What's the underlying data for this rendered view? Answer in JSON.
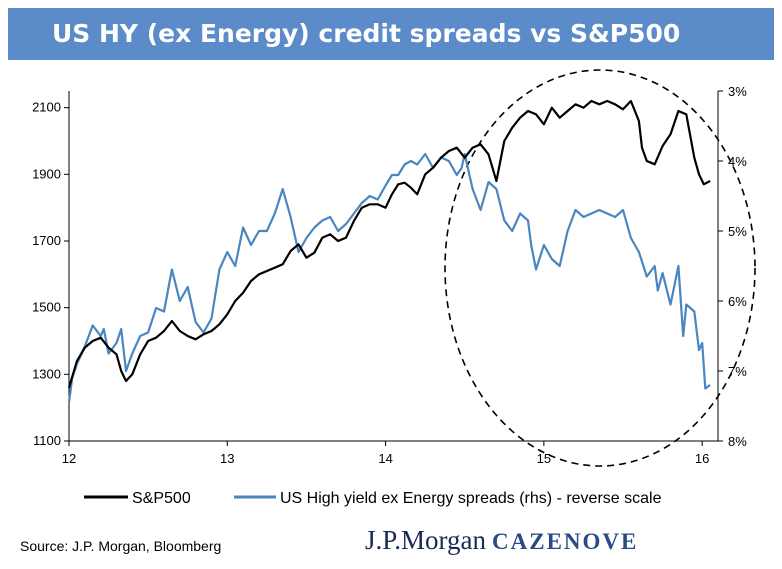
{
  "title": "US HY (ex Energy) credit spreads vs S&P500",
  "source": "Source: J.P. Morgan, Bloomberg",
  "logo": {
    "primary": "J.P.Morgan",
    "secondary": "CAZENOVE"
  },
  "colors": {
    "title_bar": "#5b8cc9",
    "sp500": "#000000",
    "hy": "#4a86c0"
  },
  "chart_data": {
    "type": "line",
    "title": "US HY (ex Energy) credit spreads vs S&P500",
    "x_ticks": [
      "12",
      "13",
      "14",
      "15",
      "16"
    ],
    "x_range": [
      12,
      16.05
    ],
    "y_left": {
      "range": [
        1100,
        2150
      ],
      "ticks": [
        1100,
        1300,
        1500,
        1700,
        1900,
        2100
      ]
    },
    "y_right": {
      "range": [
        3,
        8
      ],
      "reversed": true,
      "ticks": [
        "3%",
        "4%",
        "5%",
        "6%",
        "7%",
        "8%"
      ]
    },
    "legend_position": "bottom",
    "series": [
      {
        "name": "S&P500",
        "axis": "left",
        "x": [
          12.0,
          12.05,
          12.1,
          12.15,
          12.2,
          12.25,
          12.3,
          12.33,
          12.36,
          12.4,
          12.45,
          12.5,
          12.55,
          12.6,
          12.65,
          12.7,
          12.75,
          12.8,
          12.85,
          12.9,
          12.95,
          13.0,
          13.05,
          13.1,
          13.15,
          13.2,
          13.25,
          13.3,
          13.35,
          13.4,
          13.45,
          13.5,
          13.55,
          13.6,
          13.65,
          13.7,
          13.75,
          13.8,
          13.85,
          13.9,
          13.95,
          14.0,
          14.04,
          14.08,
          14.12,
          14.16,
          14.2,
          14.25,
          14.3,
          14.35,
          14.4,
          14.45,
          14.5,
          14.55,
          14.6,
          14.65,
          14.7,
          14.75,
          14.8,
          14.85,
          14.9,
          14.95,
          15.0,
          15.05,
          15.1,
          15.15,
          15.2,
          15.25,
          15.3,
          15.35,
          15.4,
          15.45,
          15.5,
          15.55,
          15.6,
          15.62,
          15.65,
          15.7,
          15.75,
          15.8,
          15.85,
          15.9,
          15.95,
          15.98,
          16.01,
          16.05
        ],
        "y": [
          1260,
          1340,
          1380,
          1400,
          1410,
          1380,
          1360,
          1310,
          1280,
          1300,
          1360,
          1400,
          1410,
          1430,
          1460,
          1430,
          1415,
          1405,
          1420,
          1430,
          1450,
          1480,
          1520,
          1545,
          1580,
          1600,
          1610,
          1620,
          1630,
          1670,
          1690,
          1650,
          1665,
          1710,
          1720,
          1700,
          1710,
          1760,
          1800,
          1810,
          1810,
          1800,
          1840,
          1870,
          1875,
          1860,
          1840,
          1900,
          1920,
          1950,
          1970,
          1980,
          1950,
          1980,
          1990,
          1960,
          1880,
          2000,
          2040,
          2070,
          2090,
          2080,
          2050,
          2100,
          2070,
          2090,
          2110,
          2100,
          2120,
          2110,
          2120,
          2110,
          2095,
          2120,
          2060,
          1980,
          1940,
          1930,
          1985,
          2020,
          2090,
          2080,
          1950,
          1900,
          1870,
          1880
        ]
      },
      {
        "name": "US High yield ex Energy spreads (rhs) - reverse scale",
        "axis": "right",
        "x": [
          12.0,
          12.02,
          12.05,
          12.1,
          12.15,
          12.2,
          12.22,
          12.25,
          12.3,
          12.33,
          12.36,
          12.4,
          12.45,
          12.5,
          12.55,
          12.6,
          12.65,
          12.7,
          12.75,
          12.8,
          12.85,
          12.9,
          12.95,
          13.0,
          13.05,
          13.1,
          13.15,
          13.2,
          13.25,
          13.3,
          13.35,
          13.4,
          13.45,
          13.5,
          13.55,
          13.6,
          13.65,
          13.7,
          13.75,
          13.8,
          13.85,
          13.9,
          13.95,
          14.0,
          14.04,
          14.08,
          14.12,
          14.16,
          14.2,
          14.25,
          14.3,
          14.35,
          14.4,
          14.45,
          14.48,
          14.5,
          14.55,
          14.6,
          14.65,
          14.7,
          14.75,
          14.8,
          14.85,
          14.9,
          14.92,
          14.95,
          15.0,
          15.05,
          15.1,
          15.15,
          15.2,
          15.25,
          15.3,
          15.35,
          15.4,
          15.45,
          15.5,
          15.55,
          15.6,
          15.65,
          15.7,
          15.72,
          15.75,
          15.8,
          15.85,
          15.88,
          15.9,
          15.95,
          15.98,
          16.0,
          16.02,
          16.05
        ],
        "y": [
          7.45,
          7.1,
          6.9,
          6.65,
          6.35,
          6.5,
          6.4,
          6.75,
          6.6,
          6.4,
          7.0,
          6.75,
          6.5,
          6.45,
          6.1,
          6.15,
          5.55,
          6.0,
          5.8,
          6.3,
          6.45,
          6.25,
          5.55,
          5.3,
          5.5,
          4.95,
          5.2,
          5.0,
          5.0,
          4.75,
          4.4,
          4.8,
          5.3,
          5.1,
          4.95,
          4.85,
          4.8,
          5.0,
          4.9,
          4.75,
          4.6,
          4.5,
          4.55,
          4.35,
          4.2,
          4.2,
          4.05,
          4.0,
          4.05,
          3.9,
          4.1,
          3.95,
          4.0,
          4.2,
          4.1,
          3.9,
          4.4,
          4.7,
          4.3,
          4.4,
          4.85,
          5.0,
          4.75,
          4.85,
          5.2,
          5.55,
          5.2,
          5.4,
          5.5,
          5.0,
          4.7,
          4.8,
          4.75,
          4.7,
          4.75,
          4.8,
          4.7,
          5.1,
          5.3,
          5.65,
          5.5,
          5.85,
          5.6,
          6.05,
          5.5,
          6.5,
          6.05,
          6.15,
          6.7,
          6.6,
          7.25,
          7.2
        ]
      }
    ]
  }
}
